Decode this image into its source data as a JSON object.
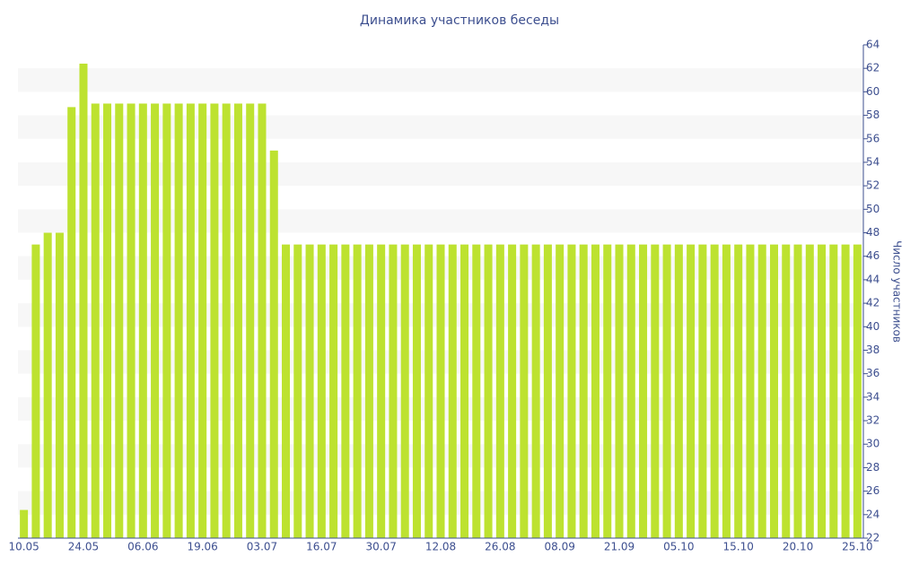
{
  "chart_data": {
    "type": "bar",
    "title": "Динамика участников беседы",
    "y_label": "Число участников",
    "categories": [
      "10.05",
      null,
      null,
      null,
      null,
      "24.05",
      null,
      null,
      null,
      null,
      "06.06",
      null,
      null,
      null,
      null,
      "19.06",
      null,
      null,
      null,
      null,
      "03.07",
      null,
      null,
      null,
      null,
      "16.07",
      null,
      null,
      null,
      null,
      "30.07",
      null,
      null,
      null,
      null,
      "12.08",
      null,
      null,
      null,
      null,
      "26.08",
      null,
      null,
      null,
      null,
      "08.09",
      null,
      null,
      null,
      null,
      "21.09",
      null,
      null,
      null,
      null,
      "05.10",
      null,
      null,
      null,
      null,
      "15.10",
      null,
      null,
      null,
      null,
      "20.10",
      null,
      null,
      null,
      null,
      "25.10"
    ],
    "values": [
      24.4,
      47,
      48,
      48,
      58.7,
      62.4,
      59,
      59,
      59,
      59,
      59,
      59,
      59,
      59,
      59,
      59,
      59,
      59,
      59,
      59,
      59,
      55,
      47,
      47,
      47,
      47,
      47,
      47,
      47,
      47,
      47,
      47,
      47,
      47,
      47,
      47,
      47,
      47,
      47,
      47,
      47,
      47,
      47,
      47,
      47,
      47,
      47,
      47,
      47,
      47,
      47,
      47,
      47,
      47,
      47,
      47,
      47,
      47,
      47,
      47,
      47,
      47,
      47,
      47,
      47,
      47,
      47,
      47,
      47,
      47,
      47
    ],
    "color": "#bde230",
    "ylim": [
      22,
      64
    ],
    "yticks": [
      22,
      24,
      26,
      28,
      30,
      32,
      34,
      36,
      38,
      40,
      42,
      44,
      46,
      48,
      50,
      52,
      54,
      56,
      58,
      60,
      62,
      64
    ],
    "grid": true,
    "y_axis_side": "right"
  }
}
